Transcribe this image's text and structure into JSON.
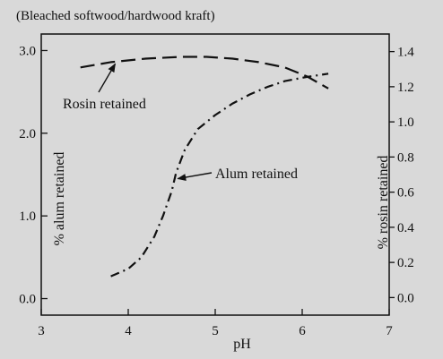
{
  "chart_data": {
    "type": "line",
    "subtitle": "(Bleached softwood/hardwood kraft)",
    "xlabel": "pH",
    "ylabel_left": "% alum retained",
    "ylabel_right": "% rosin retained",
    "xlim": [
      3,
      7
    ],
    "ylim_left": [
      -0.2,
      3.2
    ],
    "ylim_right": [
      -0.1,
      1.5
    ],
    "x_ticks": [
      "3",
      "4",
      "5",
      "6",
      "7"
    ],
    "y_left_ticks": [
      "0.0",
      "1.0",
      "2.0",
      "3.0"
    ],
    "y_right_ticks": [
      "0.0",
      "0.2",
      "0.4",
      "0.6",
      "0.8",
      "1.0",
      "1.2",
      "1.4"
    ],
    "grid": false,
    "series": [
      {
        "name": "Rosin retained",
        "axis": "right",
        "dash": "long-dash",
        "x": [
          3.45,
          3.8,
          4.2,
          4.6,
          4.9,
          5.2,
          5.5,
          5.8,
          6.05,
          6.3
        ],
        "y": [
          1.31,
          1.34,
          1.36,
          1.37,
          1.37,
          1.36,
          1.34,
          1.31,
          1.26,
          1.19
        ]
      },
      {
        "name": "Alum retained",
        "axis": "left",
        "dash": "dash-dot",
        "x": [
          3.8,
          4.0,
          4.15,
          4.3,
          4.4,
          4.5,
          4.55,
          4.65,
          4.8,
          5.0,
          5.2,
          5.4,
          5.6,
          5.8,
          6.05,
          6.3
        ],
        "y": [
          0.27,
          0.36,
          0.5,
          0.75,
          1.0,
          1.3,
          1.52,
          1.8,
          2.05,
          2.22,
          2.36,
          2.47,
          2.56,
          2.63,
          2.68,
          2.72
        ]
      }
    ],
    "annotations": [
      {
        "text": "Rosin retained",
        "series": "Rosin retained",
        "arrow_to": {
          "x": 3.85,
          "y_right": 1.33
        }
      },
      {
        "text": "Alum retained",
        "series": "Alum retained",
        "arrow_to": {
          "x": 4.57,
          "y_left": 1.45
        }
      }
    ]
  }
}
